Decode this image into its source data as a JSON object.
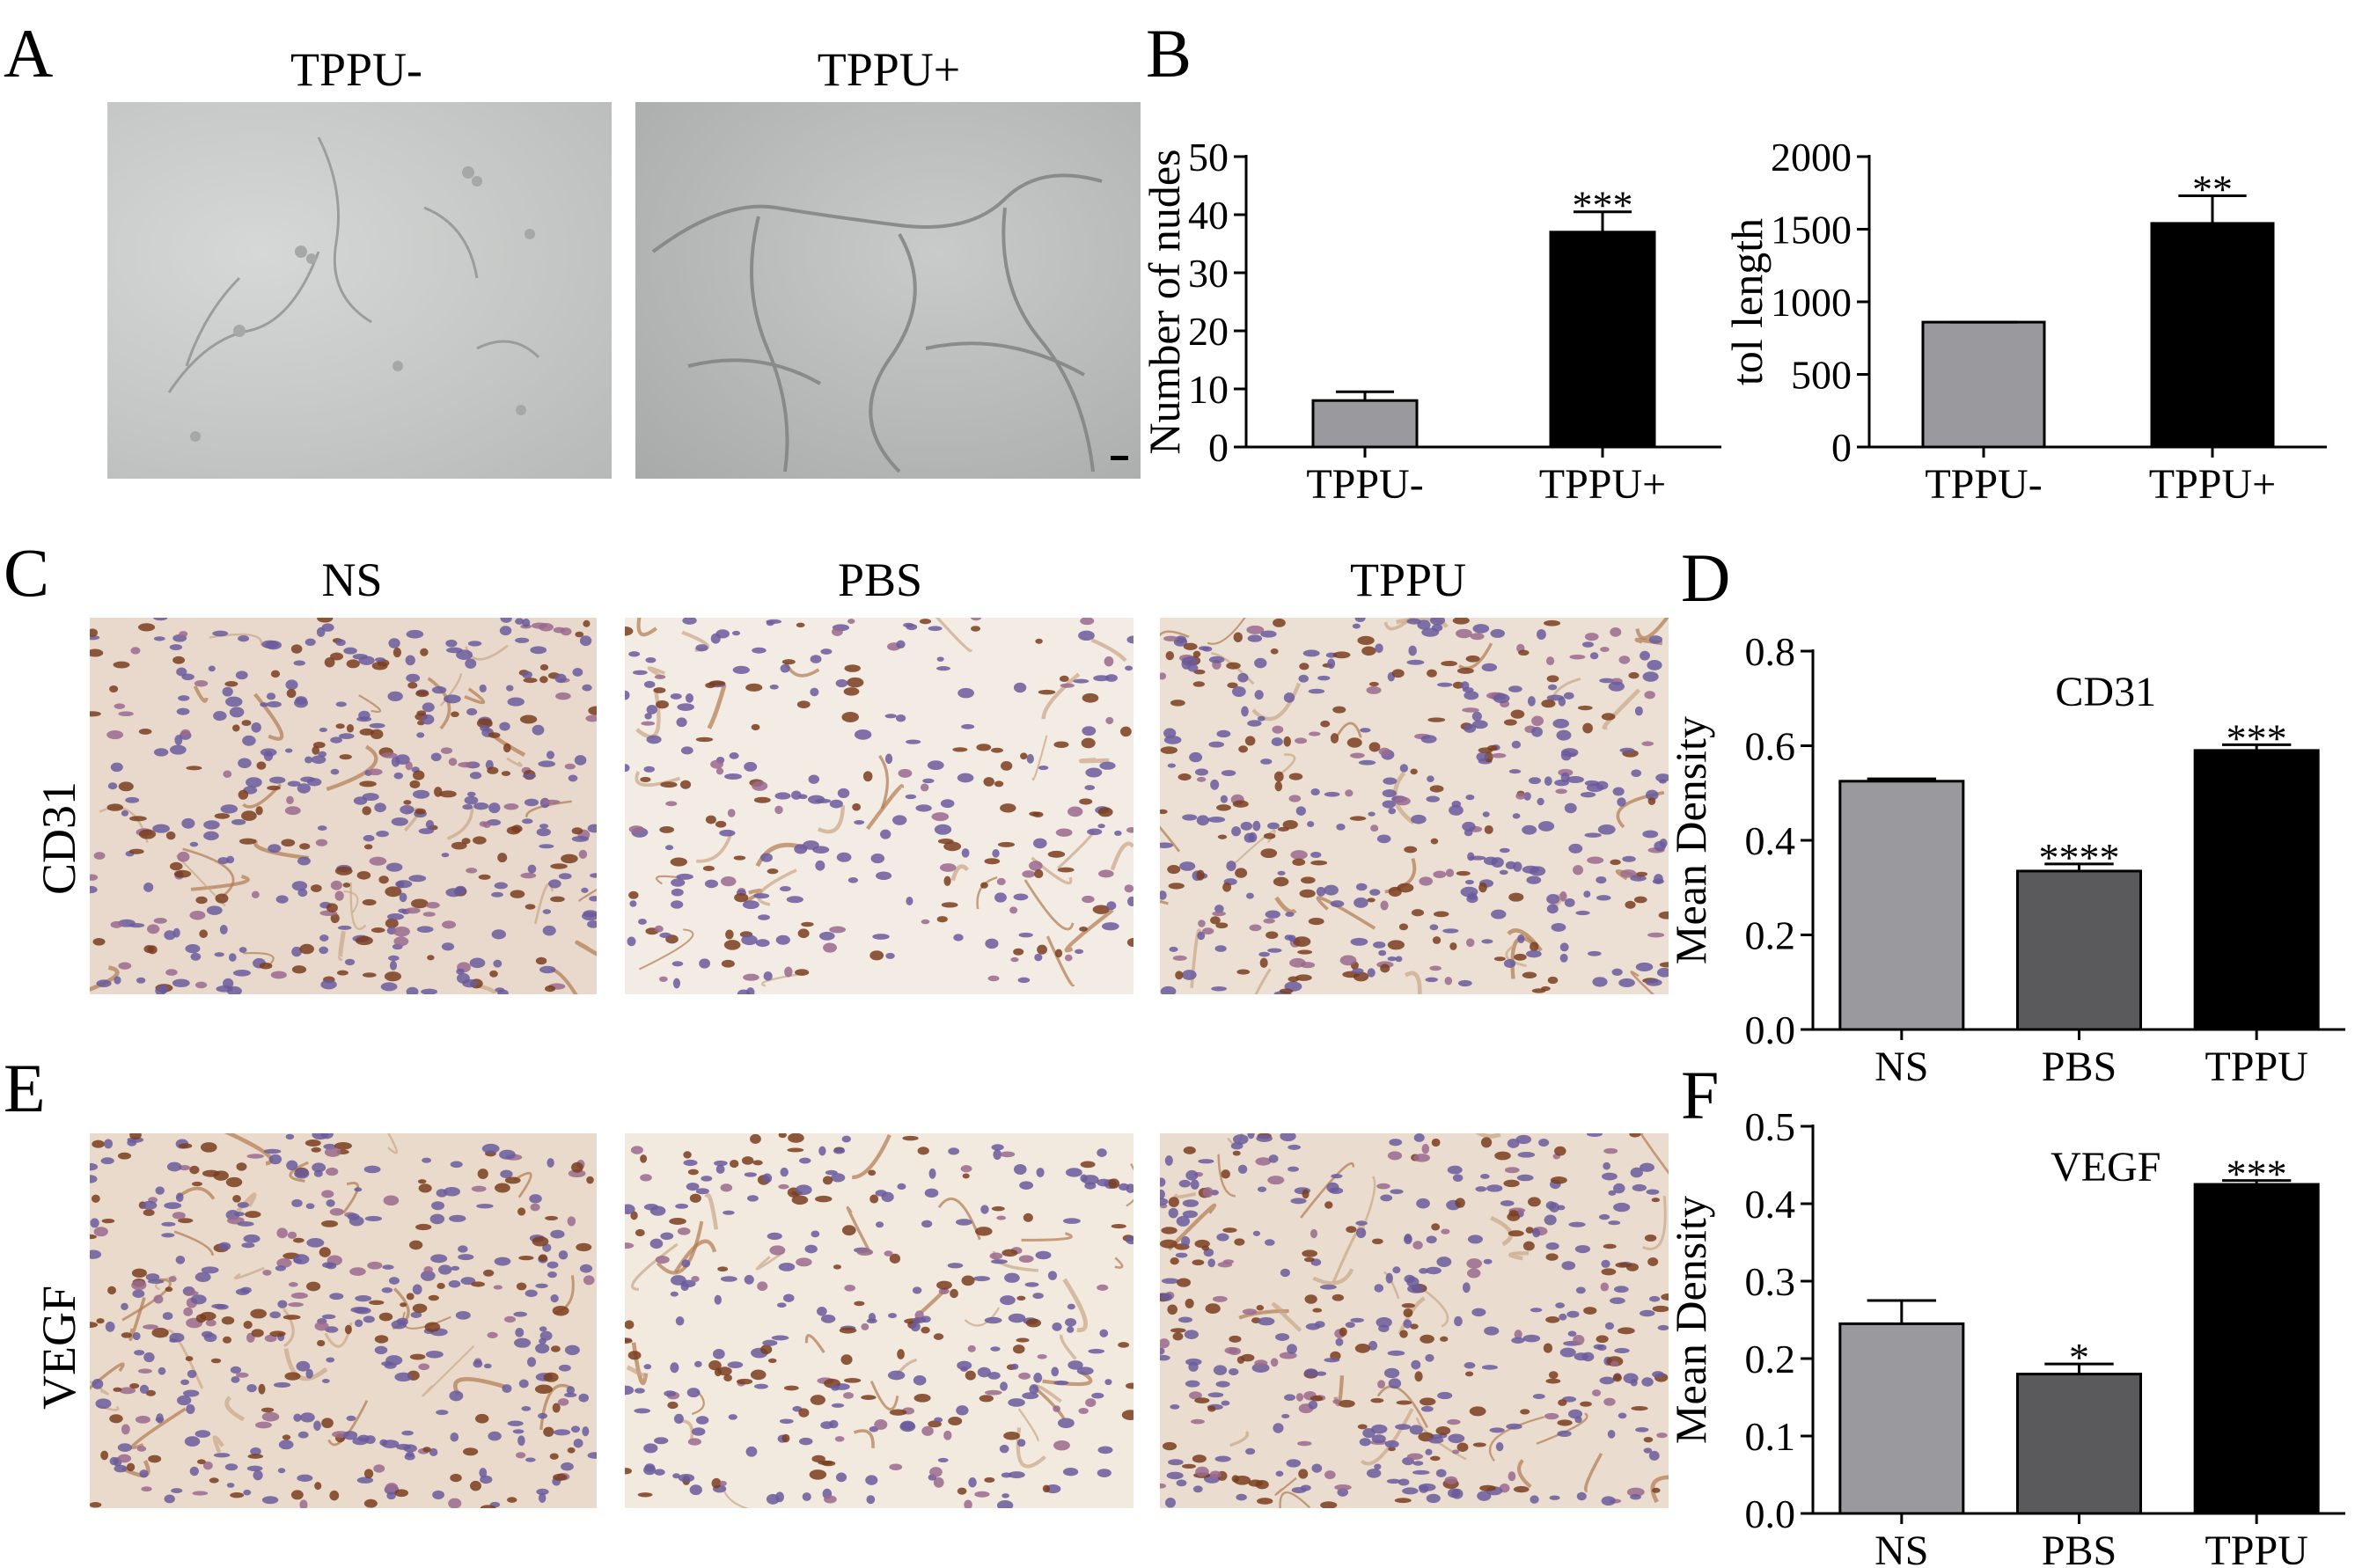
{
  "panels": {
    "A": {
      "letter": "A",
      "col1": "TPPU-",
      "col2": "TPPU+"
    },
    "B": {
      "letter": "B"
    },
    "C": {
      "letter": "C",
      "col1": "NS",
      "col2": "PBS",
      "col3": "TPPU",
      "row": "CD31"
    },
    "D": {
      "letter": "D"
    },
    "E": {
      "letter": "E",
      "row": "VEGF"
    },
    "F": {
      "letter": "F"
    }
  },
  "colors": {
    "gray_light": "#9a9a9e",
    "gray_dark": "#5a5a5c",
    "black": "#000000"
  },
  "chart_data": [
    {
      "id": "B1",
      "type": "bar",
      "categories": [
        "TPPU-",
        "TPPU+"
      ],
      "values": [
        8,
        37
      ],
      "errors": [
        1.5,
        3.5
      ],
      "significance": [
        "",
        "***"
      ],
      "colors": [
        "#9a9a9e",
        "#000000"
      ],
      "title": "",
      "ylabel": "Number of nudes",
      "ylim": [
        0,
        50
      ],
      "yticks": [
        0,
        10,
        20,
        30,
        40,
        50
      ],
      "yticklabels": [
        "0",
        "10",
        "20",
        "30",
        "40",
        "50"
      ]
    },
    {
      "id": "B2",
      "type": "bar",
      "categories": [
        "TPPU-",
        "TPPU+"
      ],
      "values": [
        860,
        1540
      ],
      "errors": [
        0,
        190
      ],
      "significance": [
        "",
        "**"
      ],
      "colors": [
        "#9a9a9e",
        "#000000"
      ],
      "title": "",
      "ylabel": "tol length",
      "ylim": [
        0,
        2000
      ],
      "yticks": [
        0,
        500,
        1000,
        1500,
        2000
      ],
      "yticklabels": [
        "0",
        "500",
        "1000",
        "1500",
        "2000"
      ]
    },
    {
      "id": "D",
      "type": "bar",
      "categories": [
        "NS",
        "PBS",
        "TPPU"
      ],
      "values": [
        0.525,
        0.335,
        0.59
      ],
      "errors": [
        0.005,
        0.015,
        0.012
      ],
      "significance": [
        "",
        "****",
        "***"
      ],
      "colors": [
        "#9a9a9e",
        "#5a5a5c",
        "#000000"
      ],
      "title": "CD31",
      "ylabel": "Mean Density",
      "ylim": [
        0,
        0.8
      ],
      "yticks": [
        0,
        0.2,
        0.4,
        0.6,
        0.8
      ],
      "yticklabels": [
        "0.0",
        "0.2",
        "0.4",
        "0.6",
        "0.8"
      ]
    },
    {
      "id": "F",
      "type": "bar",
      "categories": [
        "NS",
        "PBS",
        "TPPU"
      ],
      "values": [
        0.245,
        0.18,
        0.425
      ],
      "errors": [
        0.03,
        0.013,
        0.005
      ],
      "significance": [
        "",
        "*",
        "***"
      ],
      "colors": [
        "#9a9a9e",
        "#5a5a5c",
        "#000000"
      ],
      "title": "VEGF",
      "ylabel": "Mean Density",
      "ylim": [
        0,
        0.5
      ],
      "yticks": [
        0,
        0.1,
        0.2,
        0.3,
        0.4,
        0.5
      ],
      "yticklabels": [
        "0.0",
        "0.1",
        "0.2",
        "0.3",
        "0.4",
        "0.5"
      ]
    }
  ]
}
